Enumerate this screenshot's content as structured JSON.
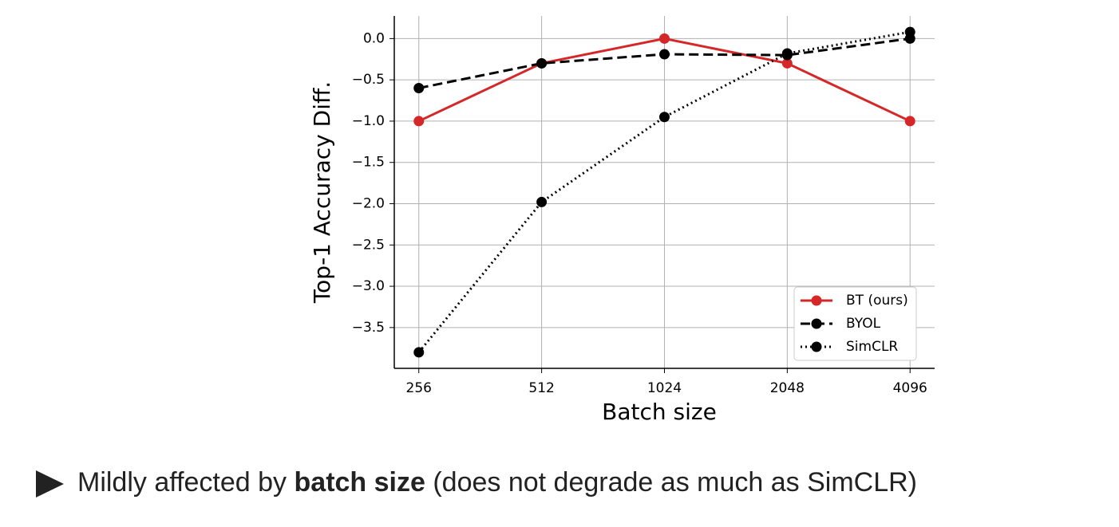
{
  "chart_data": {
    "type": "line",
    "x": [
      256,
      512,
      1024,
      2048,
      4096
    ],
    "xscale": "log2",
    "xlim": [
      222.9,
      4705
    ],
    "xticks": [
      256,
      512,
      1024,
      2048,
      4096
    ],
    "ylim": [
      -3.994,
      0.274
    ],
    "yticks": [
      {
        "value": 0,
        "label": "0.0"
      },
      {
        "value": -0.5,
        "label": "−0.5"
      },
      {
        "value": -1,
        "label": "−1.0"
      },
      {
        "value": -1.5,
        "label": "−1.5"
      },
      {
        "value": -2,
        "label": "−2.0"
      },
      {
        "value": -2.5,
        "label": "−2.5"
      },
      {
        "value": -3,
        "label": "−3.0"
      },
      {
        "value": -3.5,
        "label": "−3.5"
      }
    ],
    "xlabel": "Batch size",
    "ylabel": "Top-1 Accuracy Diff.",
    "grid": true,
    "legend": "lower right",
    "series": [
      {
        "name": "BT (ours)",
        "color": "#d62728",
        "linestyle": "solid",
        "values": [
          -1,
          -0.3,
          0,
          -0.3,
          -1
        ]
      },
      {
        "name": "BYOL",
        "color": "#000000",
        "linestyle": "dashed",
        "values": [
          -0.6,
          -0.3,
          -0.19,
          -0.2,
          0
        ]
      },
      {
        "name": "SimCLR",
        "color": "#000000",
        "linestyle": "dotted",
        "values": [
          -3.8,
          -1.98,
          -0.95,
          -0.18,
          0.08
        ]
      }
    ]
  },
  "bullet": {
    "before": "Mildly affected by ",
    "bold": "batch size",
    "after": " (does not degrade as much as SimCLR)"
  }
}
